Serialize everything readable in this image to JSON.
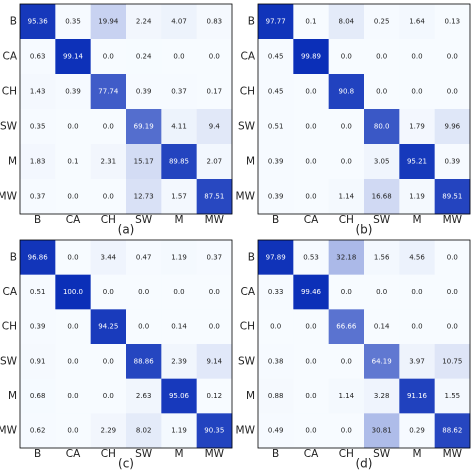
{
  "chart_data": [
    {
      "type": "heatmap",
      "caption": "(a)",
      "zlim": [
        0,
        100
      ],
      "colormap": [
        "#f7fbff",
        "#0b2fb8"
      ],
      "x_categories": [
        "B",
        "CA",
        "CH",
        "SW",
        "M",
        "MW"
      ],
      "y_categories": [
        "B",
        "CA",
        "CH",
        "SW",
        "M",
        "MW"
      ],
      "values": [
        [
          95.36,
          0.35,
          19.94,
          2.24,
          4.07,
          0.83
        ],
        [
          0.63,
          99.14,
          0,
          0.24,
          0,
          0
        ],
        [
          1.43,
          0.39,
          77.74,
          0.39,
          0.37,
          0.17
        ],
        [
          0.35,
          0,
          0,
          69.19,
          4.11,
          9.4
        ],
        [
          1.83,
          0.1,
          2.31,
          15.17,
          89.85,
          2.07
        ],
        [
          0.37,
          0,
          0,
          12.73,
          1.57,
          87.51
        ]
      ],
      "value_labels": [
        [
          "95.36",
          "0.35",
          "19.94",
          "2.24",
          "4.07",
          "0.83"
        ],
        [
          "0.63",
          "99.14",
          "0.0",
          "0.24",
          "0.0",
          "0.0"
        ],
        [
          "1.43",
          "0.39",
          "77.74",
          "0.39",
          "0.37",
          "0.17"
        ],
        [
          "0.35",
          "0.0",
          "0.0",
          "69.19",
          "4.11",
          "9.4"
        ],
        [
          "1.83",
          "0.1",
          "2.31",
          "15.17",
          "89.85",
          "2.07"
        ],
        [
          "0.37",
          "0.0",
          "0.0",
          "12.73",
          "1.57",
          "87.51"
        ]
      ]
    },
    {
      "type": "heatmap",
      "caption": "(b)",
      "zlim": [
        0,
        100
      ],
      "colormap": [
        "#f7fbff",
        "#0b2fb8"
      ],
      "x_categories": [
        "B",
        "CA",
        "CH",
        "SW",
        "M",
        "MW"
      ],
      "y_categories": [
        "B",
        "CA",
        "CH",
        "SW",
        "M",
        "MW"
      ],
      "values": [
        [
          97.77,
          0.1,
          8.04,
          0.25,
          1.64,
          0.13
        ],
        [
          0.45,
          99.89,
          0,
          0,
          0,
          0
        ],
        [
          0.45,
          0,
          90.8,
          0,
          0,
          0
        ],
        [
          0.51,
          0,
          0,
          80,
          1.79,
          9.96
        ],
        [
          0.39,
          0,
          0,
          3.05,
          95.21,
          0.39
        ],
        [
          0.39,
          0,
          1.14,
          16.68,
          1.19,
          89.51
        ]
      ],
      "value_labels": [
        [
          "97.77",
          "0.1",
          "8.04",
          "0.25",
          "1.64",
          "0.13"
        ],
        [
          "0.45",
          "99.89",
          "0.0",
          "0.0",
          "0.0",
          "0.0"
        ],
        [
          "0.45",
          "0.0",
          "90.8",
          "0.0",
          "0.0",
          "0.0"
        ],
        [
          "0.51",
          "0.0",
          "0.0",
          "80.0",
          "1.79",
          "9.96"
        ],
        [
          "0.39",
          "0.0",
          "0.0",
          "3.05",
          "95.21",
          "0.39"
        ],
        [
          "0.39",
          "0.0",
          "1.14",
          "16.68",
          "1.19",
          "89.51"
        ]
      ]
    },
    {
      "type": "heatmap",
      "caption": "(c)",
      "zlim": [
        0,
        100
      ],
      "colormap": [
        "#f7fbff",
        "#0b2fb8"
      ],
      "x_categories": [
        "B",
        "CA",
        "CH",
        "SW",
        "M",
        "MW"
      ],
      "y_categories": [
        "B",
        "CA",
        "CH",
        "SW",
        "M",
        "MW"
      ],
      "values": [
        [
          96.86,
          0,
          3.44,
          0.47,
          1.19,
          0.37
        ],
        [
          0.51,
          100,
          0,
          0,
          0,
          0
        ],
        [
          0.39,
          0,
          94.25,
          0,
          0.14,
          0
        ],
        [
          0.91,
          0,
          0,
          88.86,
          2.39,
          9.14
        ],
        [
          0.68,
          0,
          0,
          2.63,
          95.06,
          0.12
        ],
        [
          0.62,
          0,
          2.29,
          8.02,
          1.19,
          90.35
        ]
      ],
      "value_labels": [
        [
          "96.86",
          "0.0",
          "3.44",
          "0.47",
          "1.19",
          "0.37"
        ],
        [
          "0.51",
          "100.0",
          "0.0",
          "0.0",
          "0.0",
          "0.0"
        ],
        [
          "0.39",
          "0.0",
          "94.25",
          "0.0",
          "0.14",
          "0.0"
        ],
        [
          "0.91",
          "0.0",
          "0.0",
          "88.86",
          "2.39",
          "9.14"
        ],
        [
          "0.68",
          "0.0",
          "0.0",
          "2.63",
          "95.06",
          "0.12"
        ],
        [
          "0.62",
          "0.0",
          "2.29",
          "8.02",
          "1.19",
          "90.35"
        ]
      ]
    },
    {
      "type": "heatmap",
      "caption": "(d)",
      "zlim": [
        0,
        100
      ],
      "colormap": [
        "#f7fbff",
        "#0b2fb8"
      ],
      "x_categories": [
        "B",
        "CA",
        "CH",
        "SW",
        "M",
        "MW"
      ],
      "y_categories": [
        "B",
        "CA",
        "CH",
        "SW",
        "M",
        "MW"
      ],
      "values": [
        [
          97.89,
          0.53,
          32.18,
          1.56,
          4.56,
          0
        ],
        [
          0.33,
          99.46,
          0,
          0,
          0,
          0
        ],
        [
          0,
          0,
          66.66,
          0.14,
          0,
          0
        ],
        [
          0.38,
          0,
          0,
          64.19,
          3.97,
          10.75
        ],
        [
          0.88,
          0,
          1.14,
          3.28,
          91.16,
          1.55
        ],
        [
          0.49,
          0,
          0,
          30.81,
          0.29,
          88.62
        ]
      ],
      "value_labels": [
        [
          "97.89",
          "0.53",
          "32.18",
          "1.56",
          "4.56",
          "0.0"
        ],
        [
          "0.33",
          "99.46",
          "0.0",
          "0.0",
          "0.0",
          "0.0"
        ],
        [
          "0.0",
          "0.0",
          "66.66",
          "0.14",
          "0.0",
          "0.0"
        ],
        [
          "0.38",
          "0.0",
          "0.0",
          "64.19",
          "3.97",
          "10.75"
        ],
        [
          "0.88",
          "0.0",
          "1.14",
          "3.28",
          "91.16",
          "1.55"
        ],
        [
          "0.49",
          "0.0",
          "0.0",
          "30.81",
          "0.29",
          "88.62"
        ]
      ]
    }
  ]
}
